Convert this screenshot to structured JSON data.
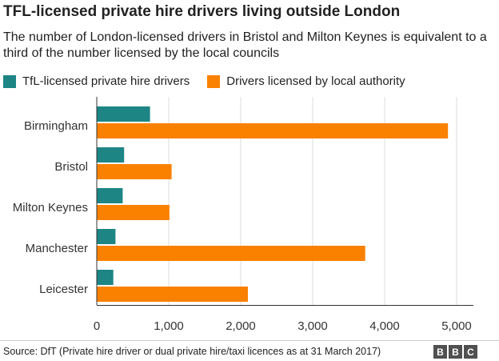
{
  "colors": {
    "tfl": "#1d8584",
    "local": "#fa8100",
    "grid": "#dcdcdc",
    "axis": "#333333"
  },
  "footer": {
    "source": "Source: DfT (Private hire driver or dual private hire/taxi licences as at 31 March 2017)",
    "logo_letters": [
      "B",
      "B",
      "C"
    ]
  },
  "chart_data": {
    "type": "bar",
    "orientation": "horizontal",
    "title": "TFL-licensed private hire drivers living outside London",
    "subtitle": "The number of London-licensed drivers in Bristol and Milton Keynes is equivalent to a third of the number licensed by the local councils",
    "categories": [
      "Birmingham",
      "Bristol",
      "Milton Keynes",
      "Manchester",
      "Leicester"
    ],
    "series": [
      {
        "name": "TfL-licensed private hire drivers",
        "color": "#1d8584",
        "values": [
          740,
          380,
          360,
          260,
          230
        ]
      },
      {
        "name": "Drivers licensed by local authority",
        "color": "#fa8100",
        "values": [
          4880,
          1040,
          1010,
          3730,
          2100
        ]
      }
    ],
    "xlim": [
      0,
      5000
    ],
    "xticks": [
      0,
      1000,
      2000,
      3000,
      4000,
      5000
    ],
    "xtick_labels": [
      "0",
      "1,000",
      "2,000",
      "3,000",
      "4,000",
      "5,000"
    ],
    "legend_position": "top-left",
    "grid": true
  }
}
